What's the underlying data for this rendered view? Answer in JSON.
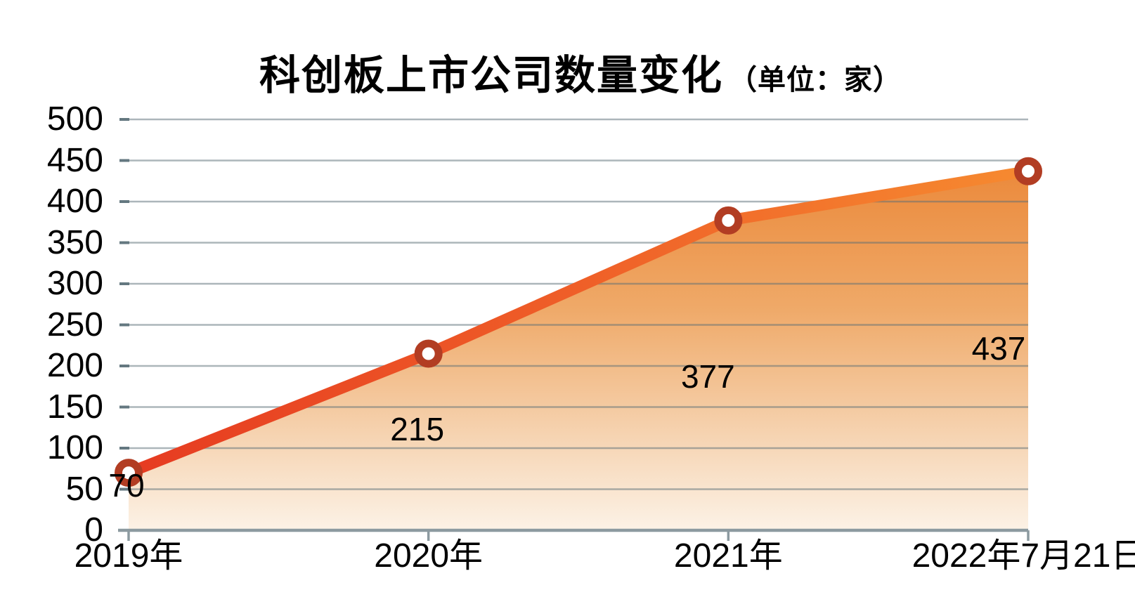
{
  "title": {
    "main": "科创板上市公司数量变化",
    "unit": "（单位：家）"
  },
  "chart_data": {
    "type": "area",
    "title": "科创板上市公司数量变化",
    "unit_label": "（单位：家）",
    "categories": [
      "2019年",
      "2020年",
      "2021年",
      "2022年7月21日"
    ],
    "values": [
      70,
      215,
      377,
      437
    ],
    "data_labels": [
      "70",
      "215",
      "377",
      "437"
    ],
    "xlabel": "",
    "ylabel": "",
    "ylim": [
      0,
      500
    ],
    "yticks": [
      0,
      50,
      100,
      150,
      200,
      250,
      300,
      350,
      400,
      450,
      500
    ],
    "grid": true,
    "legend": "none",
    "colors": {
      "line_gradient_start": "#e63b21",
      "line_gradient_mid": "#ef5f28",
      "line_gradient_end": "#f68a30",
      "marker_ring": "#b23d23",
      "marker_fill": "#ffffff",
      "area_top": "#eb8a3c",
      "area_mid": "#efa968",
      "area_low": "#f6d5b4",
      "area_bottom": "#fcf2e6",
      "gridline": "#8ca0a8",
      "grid_tick": "#647880",
      "axis": "#8c9aa0",
      "text": "#000000"
    }
  }
}
